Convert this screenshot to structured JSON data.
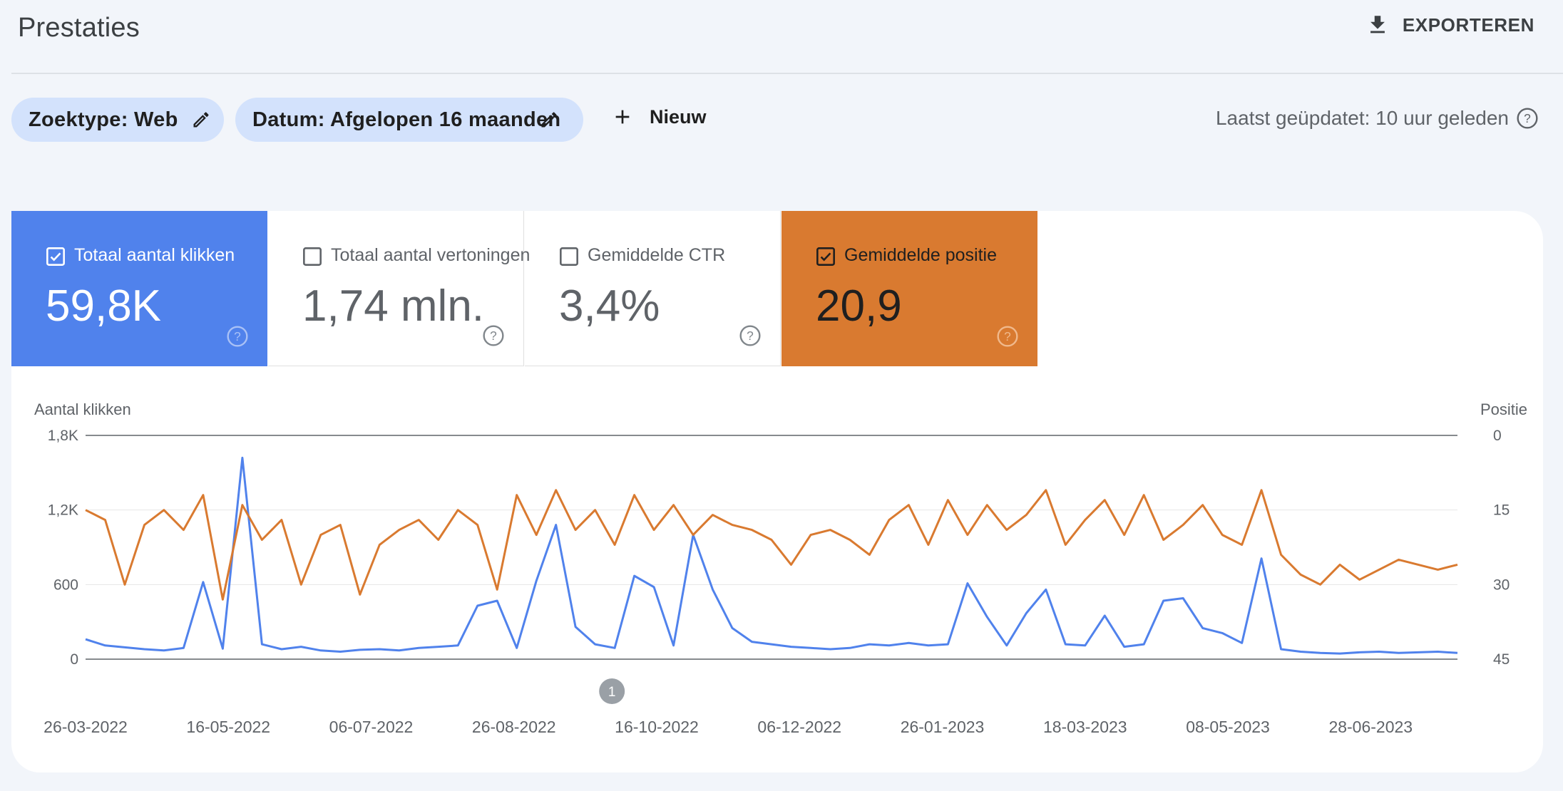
{
  "header": {
    "title": "Prestaties",
    "export_label": "EXPORTEREN"
  },
  "filters": {
    "search_type": "Zoektype: Web",
    "date": "Datum: Afgelopen 16 maanden",
    "new_label": "Nieuw",
    "last_updated": "Laatst geüpdatet: 10 uur geleden"
  },
  "metrics": {
    "clicks": {
      "label": "Totaal aantal klikken",
      "value": "59,8K",
      "checked": true,
      "color": "#5082ec"
    },
    "impressions": {
      "label": "Totaal aantal vertoningen",
      "value": "1,74 mln.",
      "checked": false
    },
    "ctr": {
      "label": "Gemiddelde CTR",
      "value": "3,4%",
      "checked": false
    },
    "position": {
      "label": "Gemiddelde positie",
      "value": "20,9",
      "checked": true,
      "color": "#d97a30"
    }
  },
  "chart_data": {
    "type": "line",
    "ylabel": "Aantal klikken",
    "y2label": "Positie",
    "ylim": [
      0,
      1800
    ],
    "y2lim": [
      0,
      45
    ],
    "y2_reversed": true,
    "yticks": [
      "0",
      "600",
      "1,2K",
      "1,8K"
    ],
    "y2ticks": [
      "45",
      "30",
      "15",
      "0"
    ],
    "xticks": [
      "26-03-2022",
      "16-05-2022",
      "06-07-2022",
      "26-08-2022",
      "16-10-2022",
      "06-12-2022",
      "26-01-2023",
      "18-03-2023",
      "08-05-2023",
      "28-06-2023"
    ],
    "annotation": "1",
    "annotation_date": "30-09-2022",
    "x_start": "26-03-2022",
    "x_end": "29-07-2023",
    "series": [
      {
        "name": "Totaal aantal klikken",
        "color": "#5082ec",
        "axis": "left",
        "points": [
          [
            "26-03-2022",
            160
          ],
          [
            "02-04-2022",
            110
          ],
          [
            "09-04-2022",
            95
          ],
          [
            "16-04-2022",
            80
          ],
          [
            "23-04-2022",
            70
          ],
          [
            "30-04-2022",
            90
          ],
          [
            "07-05-2022",
            620
          ],
          [
            "14-05-2022",
            85
          ],
          [
            "21-05-2022",
            1620
          ],
          [
            "28-05-2022",
            120
          ],
          [
            "04-06-2022",
            80
          ],
          [
            "11-06-2022",
            100
          ],
          [
            "18-06-2022",
            70
          ],
          [
            "25-06-2022",
            60
          ],
          [
            "02-07-2022",
            75
          ],
          [
            "09-07-2022",
            80
          ],
          [
            "16-07-2022",
            70
          ],
          [
            "23-07-2022",
            90
          ],
          [
            "30-07-2022",
            100
          ],
          [
            "06-08-2022",
            110
          ],
          [
            "13-08-2022",
            430
          ],
          [
            "20-08-2022",
            470
          ],
          [
            "27-08-2022",
            90
          ],
          [
            "03-09-2022",
            630
          ],
          [
            "10-09-2022",
            1080
          ],
          [
            "17-09-2022",
            260
          ],
          [
            "24-09-2022",
            120
          ],
          [
            "01-10-2022",
            90
          ],
          [
            "08-10-2022",
            670
          ],
          [
            "15-10-2022",
            580
          ],
          [
            "22-10-2022",
            110
          ],
          [
            "29-10-2022",
            1000
          ],
          [
            "05-11-2022",
            560
          ],
          [
            "12-11-2022",
            250
          ],
          [
            "19-11-2022",
            140
          ],
          [
            "26-11-2022",
            120
          ],
          [
            "03-12-2022",
            100
          ],
          [
            "10-12-2022",
            90
          ],
          [
            "17-12-2022",
            80
          ],
          [
            "24-12-2022",
            90
          ],
          [
            "31-12-2022",
            120
          ],
          [
            "07-01-2023",
            110
          ],
          [
            "14-01-2023",
            130
          ],
          [
            "21-01-2023",
            110
          ],
          [
            "28-01-2023",
            120
          ],
          [
            "04-02-2023",
            610
          ],
          [
            "11-02-2023",
            340
          ],
          [
            "18-02-2023",
            110
          ],
          [
            "25-02-2023",
            370
          ],
          [
            "04-03-2023",
            560
          ],
          [
            "11-03-2023",
            120
          ],
          [
            "18-03-2023",
            110
          ],
          [
            "25-03-2023",
            350
          ],
          [
            "01-04-2023",
            100
          ],
          [
            "08-04-2023",
            120
          ],
          [
            "15-04-2023",
            470
          ],
          [
            "22-04-2023",
            490
          ],
          [
            "29-04-2023",
            250
          ],
          [
            "06-05-2023",
            210
          ],
          [
            "13-05-2023",
            130
          ],
          [
            "20-05-2023",
            810
          ],
          [
            "27-05-2023",
            80
          ],
          [
            "03-06-2023",
            60
          ],
          [
            "10-06-2023",
            50
          ],
          [
            "17-06-2023",
            45
          ],
          [
            "24-06-2023",
            55
          ],
          [
            "01-07-2023",
            60
          ],
          [
            "08-07-2023",
            50
          ],
          [
            "15-07-2023",
            55
          ],
          [
            "22-07-2023",
            60
          ],
          [
            "29-07-2023",
            50
          ]
        ]
      },
      {
        "name": "Gemiddelde positie",
        "color": "#d97a30",
        "axis": "right",
        "points": [
          [
            "26-03-2022",
            15
          ],
          [
            "02-04-2022",
            17
          ],
          [
            "09-04-2022",
            30
          ],
          [
            "16-04-2022",
            18
          ],
          [
            "23-04-2022",
            15
          ],
          [
            "30-04-2022",
            19
          ],
          [
            "07-05-2022",
            12
          ],
          [
            "14-05-2022",
            33
          ],
          [
            "21-05-2022",
            14
          ],
          [
            "28-05-2022",
            21
          ],
          [
            "04-06-2022",
            17
          ],
          [
            "11-06-2022",
            30
          ],
          [
            "18-06-2022",
            20
          ],
          [
            "25-06-2022",
            18
          ],
          [
            "02-07-2022",
            32
          ],
          [
            "09-07-2022",
            22
          ],
          [
            "16-07-2022",
            19
          ],
          [
            "23-07-2022",
            17
          ],
          [
            "30-07-2022",
            21
          ],
          [
            "06-08-2022",
            15
          ],
          [
            "13-08-2022",
            18
          ],
          [
            "20-08-2022",
            31
          ],
          [
            "27-08-2022",
            12
          ],
          [
            "03-09-2022",
            20
          ],
          [
            "10-09-2022",
            11
          ],
          [
            "17-09-2022",
            19
          ],
          [
            "24-09-2022",
            15
          ],
          [
            "01-10-2022",
            22
          ],
          [
            "08-10-2022",
            12
          ],
          [
            "15-10-2022",
            19
          ],
          [
            "22-10-2022",
            14
          ],
          [
            "29-10-2022",
            20
          ],
          [
            "05-11-2022",
            16
          ],
          [
            "12-11-2022",
            18
          ],
          [
            "19-11-2022",
            19
          ],
          [
            "26-11-2022",
            21
          ],
          [
            "03-12-2022",
            26
          ],
          [
            "10-12-2022",
            20
          ],
          [
            "17-12-2022",
            19
          ],
          [
            "24-12-2022",
            21
          ],
          [
            "31-12-2022",
            24
          ],
          [
            "07-01-2023",
            17
          ],
          [
            "14-01-2023",
            14
          ],
          [
            "21-01-2023",
            22
          ],
          [
            "28-01-2023",
            13
          ],
          [
            "04-02-2023",
            20
          ],
          [
            "11-02-2023",
            14
          ],
          [
            "18-02-2023",
            19
          ],
          [
            "25-02-2023",
            16
          ],
          [
            "04-03-2023",
            11
          ],
          [
            "11-03-2023",
            22
          ],
          [
            "18-03-2023",
            17
          ],
          [
            "25-03-2023",
            13
          ],
          [
            "01-04-2023",
            20
          ],
          [
            "08-04-2023",
            12
          ],
          [
            "15-04-2023",
            21
          ],
          [
            "22-04-2023",
            18
          ],
          [
            "29-04-2023",
            14
          ],
          [
            "06-05-2023",
            20
          ],
          [
            "13-05-2023",
            22
          ],
          [
            "20-05-2023",
            11
          ],
          [
            "27-05-2023",
            24
          ],
          [
            "03-06-2023",
            28
          ],
          [
            "10-06-2023",
            30
          ],
          [
            "17-06-2023",
            26
          ],
          [
            "24-06-2023",
            29
          ],
          [
            "01-07-2023",
            27
          ],
          [
            "08-07-2023",
            25
          ],
          [
            "15-07-2023",
            26
          ],
          [
            "22-07-2023",
            27
          ],
          [
            "29-07-2023",
            26
          ]
        ]
      }
    ]
  }
}
